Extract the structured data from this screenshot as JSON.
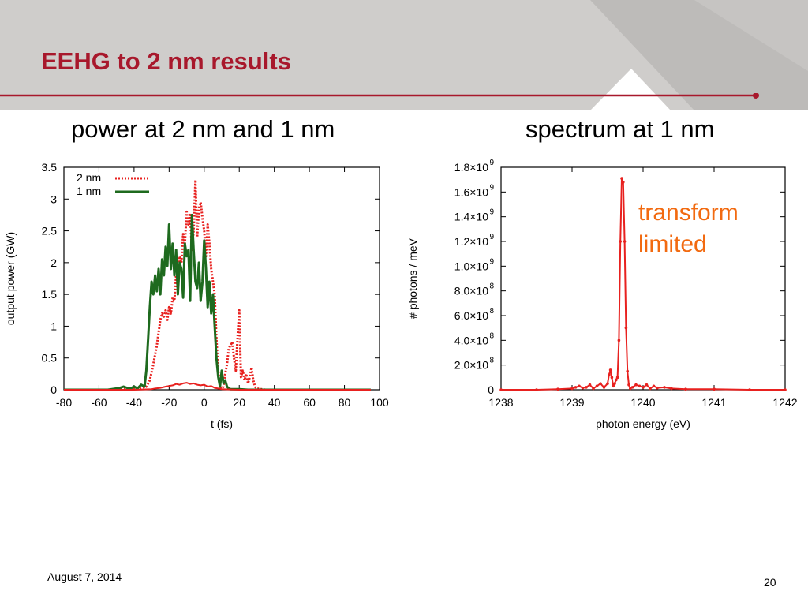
{
  "slide": {
    "title": "EEHG to 2 nm results",
    "footer_date": "August 7, 2014",
    "page_number": "20",
    "colors": {
      "title": "#a8182c",
      "header_band": "#cfcdcb",
      "accent_rule": "#a8182c"
    }
  },
  "chart_data": [
    {
      "type": "line",
      "panel_title": "power at 2 nm and 1 nm",
      "xlabel": "t (fs)",
      "ylabel": "output power (GW)",
      "xlim": [
        -80,
        100
      ],
      "ylim": [
        0,
        3.5
      ],
      "xticks": [
        -80,
        -60,
        -40,
        -20,
        0,
        20,
        40,
        60,
        80,
        100
      ],
      "yticks": [
        "0",
        "0.5",
        "1",
        "1.5",
        "2",
        "2.5",
        "3",
        "3.5"
      ],
      "legend_position": "top-left",
      "grid": false,
      "series": [
        {
          "name": "2 nm",
          "color": "#e8211f",
          "style": "dotted",
          "x": [
            -80,
            -50,
            -46,
            -40,
            -36,
            -33,
            -31,
            -29,
            -27,
            -26,
            -25,
            -24,
            -23,
            -22,
            -21,
            -20,
            -19,
            -18,
            -17,
            -16,
            -15,
            -14,
            -13,
            -12,
            -11,
            -10,
            -9,
            -8,
            -7,
            -6,
            -5,
            -4,
            -3,
            -2,
            -1,
            0,
            1,
            2,
            3,
            4,
            5,
            6,
            7,
            8,
            9,
            10,
            11,
            12,
            13,
            14,
            15,
            16,
            17,
            18,
            19,
            20,
            21,
            22,
            23,
            24,
            25,
            26,
            27,
            28,
            29,
            30,
            35,
            95
          ],
          "y": [
            0,
            0,
            0.01,
            0.02,
            0.03,
            0.05,
            0.15,
            0.4,
            0.7,
            0.9,
            1.1,
            1.2,
            1.15,
            1.25,
            1.1,
            1.3,
            1.2,
            1.45,
            1.4,
            1.8,
            1.6,
            2.1,
            2.0,
            2.45,
            2.3,
            2.8,
            2.6,
            2.75,
            2.2,
            2.5,
            3.3,
            2.4,
            2.85,
            2.95,
            2.7,
            2.5,
            2.1,
            2.6,
            2.3,
            1.9,
            1.7,
            1.5,
            0.8,
            0.3,
            0.05,
            0.02,
            0.05,
            0.25,
            0.4,
            0.65,
            0.7,
            0.75,
            0.5,
            0.3,
            0.8,
            1.25,
            0.2,
            0.3,
            0.15,
            0.25,
            0.1,
            0.2,
            0.35,
            0.15,
            0.05,
            0.02,
            0,
            0
          ]
        },
        {
          "name": "1 nm",
          "color": "#1e6a1e",
          "style": "solid",
          "x": [
            -80,
            -55,
            -50,
            -48,
            -46,
            -44,
            -42,
            -40,
            -38,
            -36,
            -34,
            -33,
            -32,
            -31,
            -30,
            -29,
            -28,
            -27,
            -26,
            -25,
            -24,
            -23,
            -22,
            -21,
            -20,
            -19,
            -18,
            -17,
            -16,
            -15,
            -14,
            -13,
            -12,
            -11,
            -10,
            -9,
            -8,
            -7,
            -6,
            -5,
            -4,
            -3,
            -2,
            -1,
            0,
            1,
            2,
            3,
            4,
            5,
            6,
            7,
            8,
            9,
            10,
            11,
            12,
            13,
            14,
            15,
            20,
            25,
            30,
            95
          ],
          "y": [
            0,
            0,
            0.02,
            0.03,
            0.05,
            0.03,
            0.02,
            0.05,
            0.02,
            0.08,
            0.05,
            0.3,
            0.8,
            1.3,
            1.7,
            1.5,
            1.8,
            1.55,
            1.9,
            1.5,
            2.05,
            1.8,
            2.25,
            1.95,
            2.6,
            1.9,
            2.3,
            1.8,
            2.2,
            1.5,
            2.0,
            1.9,
            1.45,
            2.3,
            2.1,
            2.2,
            1.4,
            2.75,
            2.2,
            1.7,
            1.6,
            2.0,
            1.4,
            1.7,
            2.35,
            1.9,
            1.3,
            1.7,
            1.2,
            1.5,
            1.0,
            0.5,
            0.2,
            0.05,
            0.3,
            0.1,
            0.15,
            0.05,
            0.02,
            0.01,
            0.01,
            0,
            0,
            0
          ]
        },
        {
          "color": "#e8211f",
          "style": "solid",
          "x": [
            -80,
            -40,
            -35,
            -30,
            -28,
            -25,
            -22,
            -20,
            -18,
            -16,
            -14,
            -12,
            -10,
            -8,
            -6,
            -4,
            -2,
            0,
            2,
            4,
            6,
            8,
            10,
            20,
            95
          ],
          "y": [
            0,
            0,
            0.005,
            0.01,
            0.02,
            0.03,
            0.05,
            0.06,
            0.07,
            0.09,
            0.08,
            0.1,
            0.11,
            0.09,
            0.1,
            0.08,
            0.07,
            0.08,
            0.05,
            0.06,
            0.03,
            0.02,
            0.01,
            0,
            0
          ]
        }
      ]
    },
    {
      "type": "line",
      "panel_title": "spectrum at 1 nm",
      "xlabel": "photon energy (eV)",
      "ylabel": "# photons / meV",
      "xlim": [
        1238,
        1242
      ],
      "ylim": [
        0,
        1800000000
      ],
      "xticks": [
        "1238",
        "1239",
        "1240",
        "1241",
        "1242"
      ],
      "yticks": [
        "0",
        "2.0×10",
        "4.0×10",
        "6.0×10",
        "8.0×10",
        "1.0×10",
        "1.2×10",
        "1.4×10",
        "1.6×10",
        "1.8×10"
      ],
      "ytick_exponents": [
        "",
        "8",
        "8",
        "8",
        "8",
        "9",
        "9",
        "9",
        "9",
        "9"
      ],
      "annotation": [
        "transform",
        "limited"
      ],
      "annotation_color": "#f26a10",
      "grid": false,
      "series": [
        {
          "color": "#e8211f",
          "style": "solid-with-markers",
          "x": [
            1238.0,
            1238.5,
            1238.8,
            1239.0,
            1239.05,
            1239.1,
            1239.15,
            1239.2,
            1239.25,
            1239.3,
            1239.35,
            1239.4,
            1239.45,
            1239.5,
            1239.52,
            1239.54,
            1239.56,
            1239.58,
            1239.6,
            1239.62,
            1239.64,
            1239.66,
            1239.68,
            1239.7,
            1239.72,
            1239.74,
            1239.76,
            1239.78,
            1239.8,
            1239.82,
            1239.85,
            1239.9,
            1239.95,
            1240.0,
            1240.05,
            1240.1,
            1240.15,
            1240.2,
            1240.3,
            1240.4,
            1240.6,
            1241.0,
            1241.5,
            1242.0
          ],
          "y": [
            0,
            0,
            5000000,
            10000000,
            20000000,
            30000000,
            15000000,
            20000000,
            40000000,
            10000000,
            30000000,
            50000000,
            20000000,
            50000000,
            120000000,
            160000000,
            100000000,
            30000000,
            50000000,
            80000000,
            100000000,
            400000000,
            1200000000,
            1710000000,
            1680000000,
            1200000000,
            500000000,
            150000000,
            40000000,
            10000000,
            20000000,
            40000000,
            30000000,
            20000000,
            40000000,
            10000000,
            30000000,
            15000000,
            20000000,
            10000000,
            5000000,
            5000000,
            0,
            0
          ]
        }
      ]
    }
  ]
}
